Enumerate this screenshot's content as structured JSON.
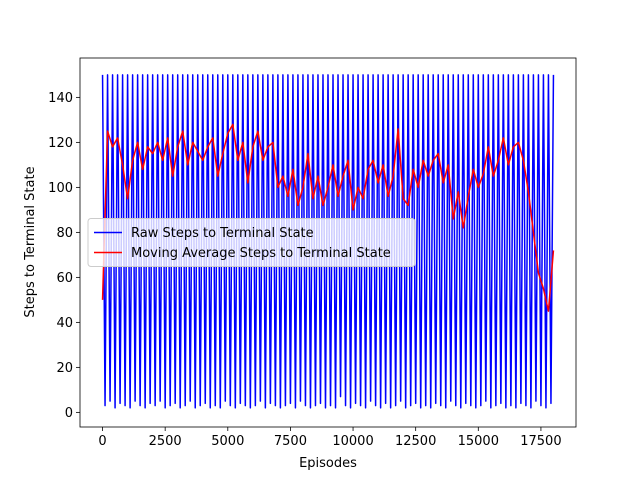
{
  "chart_data": {
    "type": "line",
    "xlabel": "Episodes",
    "ylabel": "Steps to Terminal State",
    "xlim": [
      -900,
      18900
    ],
    "ylim": [
      -6.5,
      157.5
    ],
    "xticks": [
      0,
      2500,
      5000,
      7500,
      10000,
      12500,
      15000,
      17500
    ],
    "yticks": [
      0,
      20,
      40,
      60,
      80,
      100,
      120,
      140
    ],
    "legend": "center left",
    "series": [
      {
        "name": "Raw Steps to Terminal State",
        "color": "#0000ff",
        "x": [
          0,
          100,
          200,
          300,
          400,
          500,
          600,
          700,
          800,
          900,
          1000,
          1100,
          1200,
          1300,
          1400,
          1500,
          1600,
          1700,
          1800,
          1900,
          2000,
          2100,
          2200,
          2300,
          2400,
          2500,
          2600,
          2700,
          2800,
          2900,
          3000,
          3100,
          3200,
          3300,
          3400,
          3500,
          3600,
          3700,
          3800,
          3900,
          4000,
          4100,
          4200,
          4300,
          4400,
          4500,
          4600,
          4700,
          4800,
          4900,
          5000,
          5100,
          5200,
          5300,
          5400,
          5500,
          5600,
          5700,
          5800,
          5900,
          6000,
          6100,
          6200,
          6300,
          6400,
          6500,
          6600,
          6700,
          6800,
          6900,
          7000,
          7100,
          7200,
          7300,
          7400,
          7500,
          7600,
          7700,
          7800,
          7900,
          8000,
          8100,
          8200,
          8300,
          8400,
          8500,
          8600,
          8700,
          8800,
          8900,
          9000,
          9100,
          9200,
          9300,
          9400,
          9500,
          9600,
          9700,
          9800,
          9900,
          10000,
          10100,
          10200,
          10300,
          10400,
          10500,
          10600,
          10700,
          10800,
          10900,
          11000,
          11100,
          11200,
          11300,
          11400,
          11500,
          11600,
          11700,
          11800,
          11900,
          12000,
          12100,
          12200,
          12300,
          12400,
          12500,
          12600,
          12700,
          12800,
          12900,
          13000,
          13100,
          13200,
          13300,
          13400,
          13500,
          13600,
          13700,
          13800,
          13900,
          14000,
          14100,
          14200,
          14300,
          14400,
          14500,
          14600,
          14700,
          14800,
          14900,
          15000,
          15100,
          15200,
          15300,
          15400,
          15500,
          15600,
          15700,
          15800,
          15900,
          16000,
          16100,
          16200,
          16300,
          16400,
          16500,
          16600,
          16700,
          16800,
          16900,
          17000,
          17100,
          17200,
          17300,
          17400,
          17500,
          17600,
          17700,
          17800,
          17900,
          18000
        ],
        "values": [
          150,
          3,
          150,
          5,
          150,
          2,
          150,
          4,
          150,
          3,
          150,
          2,
          150,
          5,
          150,
          3,
          150,
          2,
          150,
          4,
          150,
          3,
          150,
          5,
          150,
          2,
          150,
          3,
          150,
          4,
          150,
          2,
          150,
          3,
          150,
          5,
          150,
          2,
          150,
          3,
          150,
          4,
          150,
          2,
          150,
          3,
          150,
          2,
          150,
          5,
          150,
          3,
          150,
          2,
          150,
          4,
          150,
          3,
          150,
          2,
          150,
          3,
          150,
          5,
          150,
          2,
          150,
          4,
          150,
          3,
          150,
          2,
          150,
          3,
          150,
          4,
          150,
          2,
          150,
          5,
          150,
          3,
          150,
          2,
          150,
          3,
          150,
          4,
          150,
          2,
          150,
          3,
          150,
          2,
          150,
          7,
          150,
          3,
          150,
          2,
          150,
          4,
          150,
          3,
          150,
          2,
          150,
          5,
          150,
          3,
          150,
          2,
          150,
          4,
          150,
          2,
          150,
          3,
          150,
          5,
          150,
          2,
          150,
          3,
          150,
          4,
          150,
          2,
          150,
          3,
          150,
          2,
          150,
          4,
          150,
          3,
          150,
          2,
          150,
          5,
          150,
          3,
          150,
          2,
          150,
          4,
          150,
          3,
          150,
          2,
          150,
          3,
          150,
          5,
          150,
          2,
          150,
          3,
          150,
          4,
          150,
          2,
          150,
          3,
          150,
          2,
          150,
          4,
          150,
          3,
          150,
          2,
          150,
          5,
          150,
          3,
          150,
          2,
          150,
          4,
          150
        ]
      },
      {
        "name": "Moving Average Steps to Terminal State",
        "color": "#ff0000",
        "x": [
          0,
          200,
          400,
          600,
          800,
          1000,
          1200,
          1400,
          1600,
          1800,
          2000,
          2200,
          2400,
          2600,
          2800,
          3000,
          3200,
          3400,
          3600,
          3800,
          4000,
          4200,
          4400,
          4600,
          4800,
          5000,
          5200,
          5400,
          5600,
          5800,
          6000,
          6200,
          6400,
          6600,
          6800,
          7000,
          7200,
          7400,
          7600,
          7800,
          8000,
          8200,
          8400,
          8600,
          8800,
          9000,
          9200,
          9400,
          9600,
          9800,
          10000,
          10200,
          10400,
          10600,
          10800,
          11000,
          11200,
          11400,
          11600,
          11800,
          12000,
          12200,
          12400,
          12600,
          12800,
          13000,
          13200,
          13400,
          13600,
          13800,
          14000,
          14200,
          14400,
          14600,
          14800,
          15000,
          15200,
          15400,
          15600,
          15800,
          16000,
          16200,
          16400,
          16600,
          16800,
          17000,
          17200,
          17400,
          17600,
          17800,
          18000
        ],
        "values": [
          50,
          125,
          118,
          122,
          110,
          95,
          112,
          120,
          108,
          118,
          115,
          120,
          112,
          122,
          105,
          118,
          125,
          110,
          120,
          116,
          112,
          118,
          122,
          105,
          115,
          124,
          128,
          112,
          120,
          102,
          118,
          125,
          112,
          118,
          120,
          100,
          105,
          96,
          108,
          92,
          100,
          115,
          95,
          105,
          92,
          100,
          110,
          96,
          105,
          112,
          90,
          100,
          95,
          108,
          112,
          102,
          110,
          96,
          105,
          126,
          95,
          92,
          108,
          100,
          112,
          105,
          112,
          115,
          102,
          110,
          86,
          98,
          82,
          96,
          108,
          100,
          106,
          118,
          105,
          112,
          122,
          110,
          118,
          120,
          112,
          98,
          80,
          62,
          55,
          45,
          72
        ]
      }
    ]
  }
}
